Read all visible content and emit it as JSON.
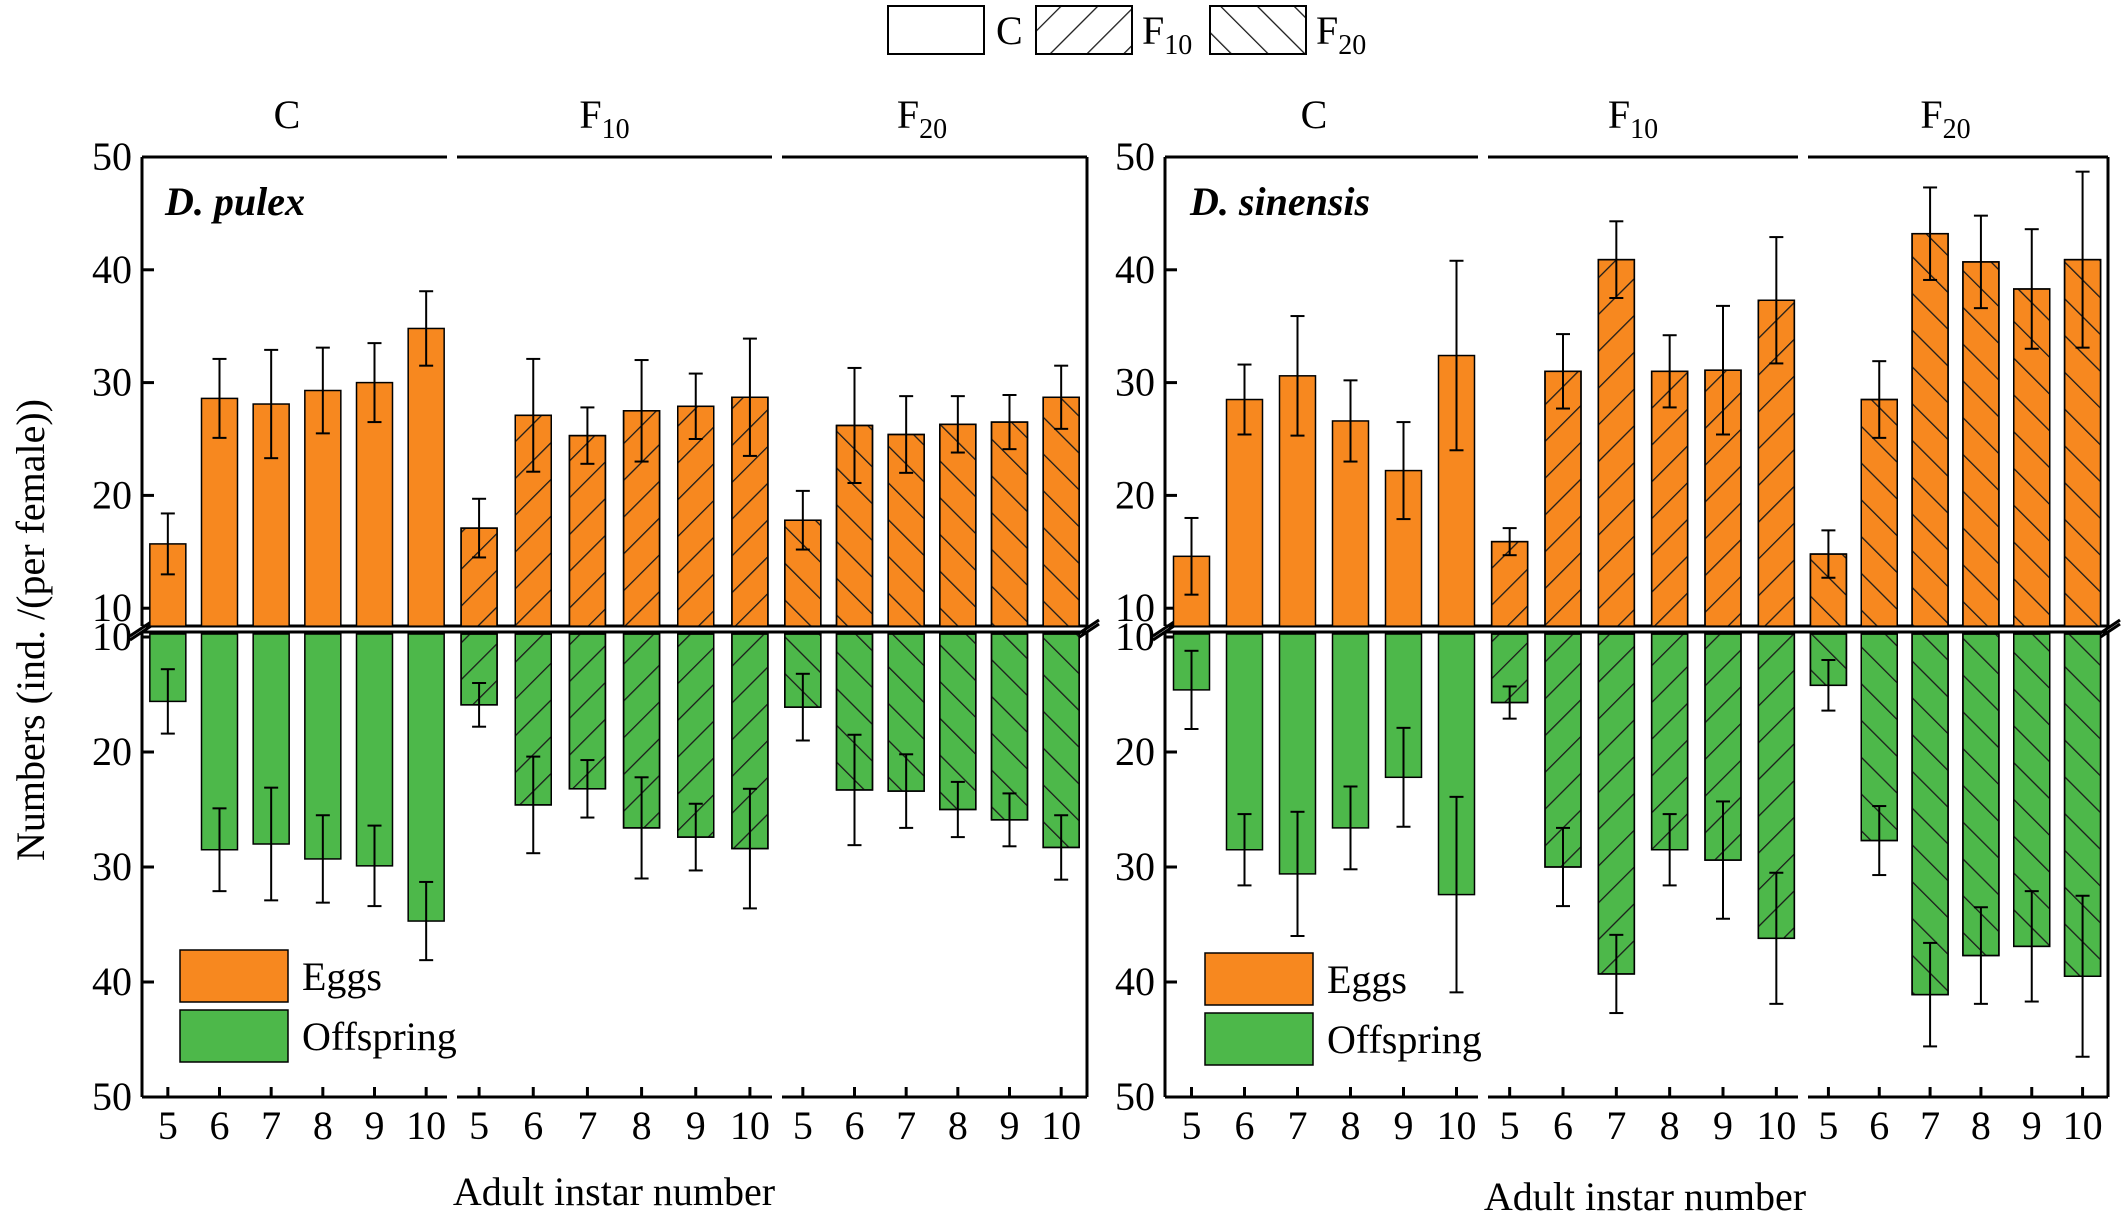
{
  "figure_legend": {
    "items": [
      {
        "label": "C",
        "sub": "",
        "pattern": "none"
      },
      {
        "label": "F",
        "sub": "10",
        "pattern": "fwd"
      },
      {
        "label": "F",
        "sub": "20",
        "pattern": "back"
      }
    ]
  },
  "y_axis_label": "Numbers (ind. /(per female))",
  "x_axis_label": "Adult instar number",
  "colors": {
    "eggs": "#f7881f",
    "offspring": "#4db84a",
    "axis": "#000000",
    "hatch": "#1a1a1a"
  },
  "series_legend": {
    "eggs": "Eggs",
    "offspring": "Offspring"
  },
  "chart_data": [
    {
      "type": "bar",
      "species": "D. pulex",
      "x_tick_labels": [
        "5",
        "6",
        "7",
        "8",
        "9",
        "10"
      ],
      "treatment_labels": [
        {
          "label": "C",
          "sub": ""
        },
        {
          "label": "F",
          "sub": "10"
        },
        {
          "label": "F",
          "sub": "20"
        }
      ],
      "upper_axis": {
        "ylim": [
          10,
          50
        ],
        "ticks": [
          "10",
          "20",
          "30",
          "40",
          "50"
        ]
      },
      "lower_axis": {
        "ylim": [
          10,
          50
        ],
        "ticks": [
          "10",
          "20",
          "30",
          "40",
          "50"
        ],
        "inverted": true
      },
      "groups": [
        {
          "treatment": "C",
          "eggs": [
            15.7,
            28.6,
            28.1,
            29.3,
            30.0,
            34.8
          ],
          "eggs_err": [
            2.7,
            3.5,
            4.8,
            3.8,
            3.5,
            3.3
          ],
          "offspring": [
            15.6,
            28.5,
            28.0,
            29.3,
            29.9,
            34.7
          ],
          "offspring_err": [
            2.8,
            3.6,
            4.9,
            3.8,
            3.5,
            3.4
          ]
        },
        {
          "treatment": "F10",
          "eggs": [
            17.1,
            27.1,
            25.3,
            27.5,
            27.9,
            28.7
          ],
          "eggs_err": [
            2.6,
            5.0,
            2.5,
            4.5,
            2.9,
            5.2
          ],
          "offspring": [
            15.9,
            24.6,
            23.2,
            26.6,
            27.4,
            28.4
          ],
          "offspring_err": [
            1.9,
            4.2,
            2.5,
            4.4,
            2.9,
            5.2
          ]
        },
        {
          "treatment": "F20",
          "eggs": [
            17.8,
            26.2,
            25.4,
            26.3,
            26.5,
            28.7
          ],
          "eggs_err": [
            2.6,
            5.1,
            3.4,
            2.5,
            2.4,
            2.8
          ],
          "offspring": [
            16.1,
            23.3,
            23.4,
            25.0,
            25.9,
            28.3
          ],
          "offspring_err": [
            2.9,
            4.8,
            3.2,
            2.4,
            2.3,
            2.8
          ]
        }
      ]
    },
    {
      "type": "bar",
      "species": "D. sinensis",
      "x_tick_labels": [
        "5",
        "6",
        "7",
        "8",
        "9",
        "10"
      ],
      "treatment_labels": [
        {
          "label": "C",
          "sub": ""
        },
        {
          "label": "F",
          "sub": "10"
        },
        {
          "label": "F",
          "sub": "20"
        }
      ],
      "upper_axis": {
        "ylim": [
          10,
          50
        ],
        "ticks": [
          "10",
          "20",
          "30",
          "40",
          "50"
        ]
      },
      "lower_axis": {
        "ylim": [
          10,
          50
        ],
        "ticks": [
          "10",
          "20",
          "30",
          "40",
          "50"
        ],
        "inverted": true
      },
      "groups": [
        {
          "treatment": "C",
          "eggs": [
            14.6,
            28.5,
            30.6,
            26.6,
            22.2,
            32.4
          ],
          "eggs_err": [
            3.4,
            3.1,
            5.3,
            3.6,
            4.3,
            8.4
          ],
          "offspring": [
            14.6,
            28.5,
            30.6,
            26.6,
            22.2,
            32.4
          ],
          "offspring_err": [
            3.4,
            3.1,
            5.4,
            3.6,
            4.3,
            8.5
          ]
        },
        {
          "treatment": "F10",
          "eggs": [
            15.9,
            31.0,
            40.9,
            31.0,
            31.1,
            37.3
          ],
          "eggs_err": [
            1.2,
            3.3,
            3.4,
            3.2,
            5.7,
            5.6
          ],
          "offspring": [
            15.7,
            30.0,
            39.3,
            28.5,
            29.4,
            36.2
          ],
          "offspring_err": [
            1.4,
            3.4,
            3.4,
            3.1,
            5.1,
            5.7
          ]
        },
        {
          "treatment": "F20",
          "eggs": [
            14.8,
            28.5,
            43.2,
            40.7,
            38.3,
            40.9
          ],
          "eggs_err": [
            2.1,
            3.4,
            4.1,
            4.1,
            5.3,
            7.8
          ],
          "offspring": [
            14.2,
            27.7,
            41.1,
            37.7,
            36.9,
            39.5
          ],
          "offspring_err": [
            2.2,
            3.0,
            4.5,
            4.2,
            4.8,
            7.0
          ]
        }
      ]
    }
  ]
}
